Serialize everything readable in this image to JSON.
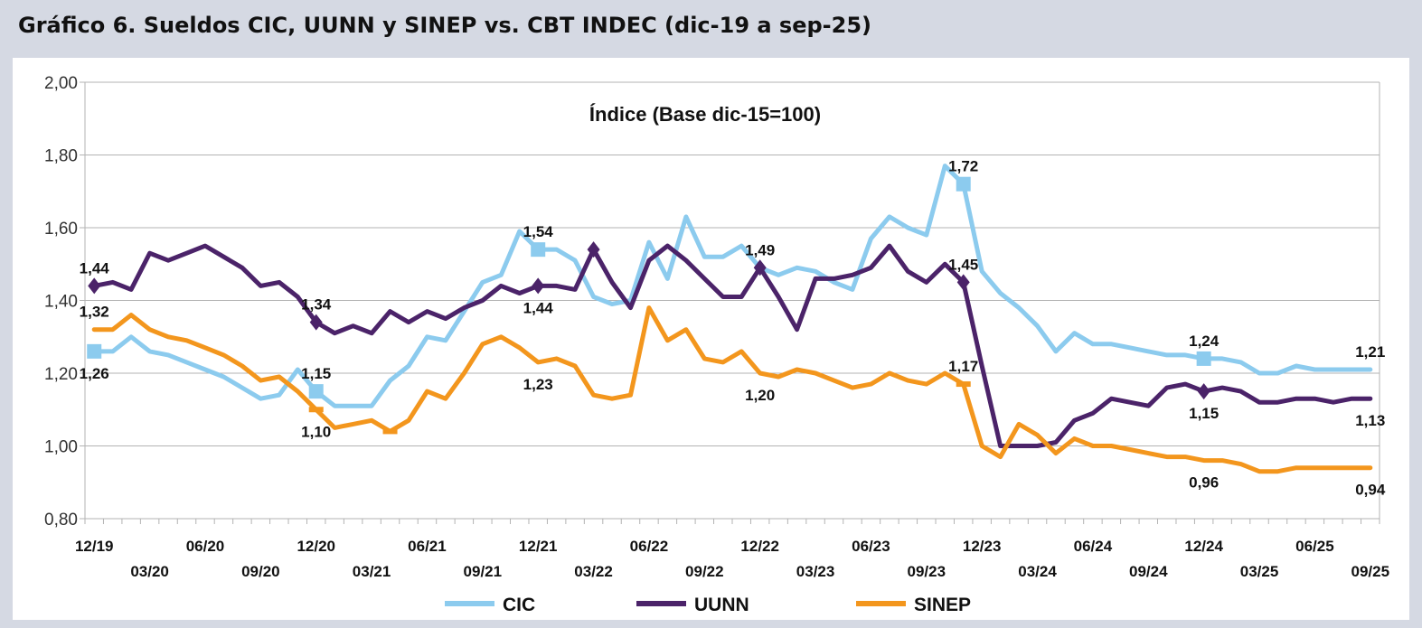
{
  "title": "Gráfico 6. Sueldos CIC, UUNN y SINEP vs. CBT INDEC (dic-19 a sep-25)",
  "chart_data": {
    "type": "line",
    "subtitle": "Índice (Base dic-15=100)",
    "ylim": [
      0.8,
      2.0
    ],
    "yticks": [
      "0,80",
      "1,00",
      "1,20",
      "1,40",
      "1,60",
      "1,80",
      "2,00"
    ],
    "ytick_values": [
      0.8,
      1.0,
      1.2,
      1.4,
      1.6,
      1.8,
      2.0
    ],
    "x_months": 70,
    "xticks": [
      {
        "label": "12/19",
        "m": 0,
        "row": 1
      },
      {
        "label": "03/20",
        "m": 3,
        "row": 2
      },
      {
        "label": "06/20",
        "m": 6,
        "row": 1
      },
      {
        "label": "09/20",
        "m": 9,
        "row": 2
      },
      {
        "label": "12/20",
        "m": 12,
        "row": 1
      },
      {
        "label": "03/21",
        "m": 15,
        "row": 2
      },
      {
        "label": "06/21",
        "m": 18,
        "row": 1
      },
      {
        "label": "09/21",
        "m": 21,
        "row": 2
      },
      {
        "label": "12/21",
        "m": 24,
        "row": 1
      },
      {
        "label": "03/22",
        "m": 27,
        "row": 2
      },
      {
        "label": "06/22",
        "m": 30,
        "row": 1
      },
      {
        "label": "09/22",
        "m": 33,
        "row": 2
      },
      {
        "label": "12/22",
        "m": 36,
        "row": 1
      },
      {
        "label": "03/23",
        "m": 39,
        "row": 2
      },
      {
        "label": "06/23",
        "m": 42,
        "row": 1
      },
      {
        "label": "09/23",
        "m": 45,
        "row": 2
      },
      {
        "label": "12/23",
        "m": 48,
        "row": 1
      },
      {
        "label": "03/24",
        "m": 51,
        "row": 2
      },
      {
        "label": "06/24",
        "m": 54,
        "row": 1
      },
      {
        "label": "09/24",
        "m": 57,
        "row": 2
      },
      {
        "label": "12/24",
        "m": 60,
        "row": 1
      },
      {
        "label": "03/25",
        "m": 63,
        "row": 2
      },
      {
        "label": "06/25",
        "m": 66,
        "row": 1
      },
      {
        "label": "09/25",
        "m": 69,
        "row": 2
      }
    ],
    "grid": true,
    "legend_position": "bottom",
    "series": [
      {
        "name": "CIC",
        "color": "#8ccbee",
        "marker": "square",
        "values": [
          1.26,
          1.26,
          1.3,
          1.26,
          1.25,
          1.23,
          1.21,
          1.19,
          1.16,
          1.13,
          1.14,
          1.21,
          1.15,
          1.11,
          1.11,
          1.11,
          1.18,
          1.22,
          1.3,
          1.29,
          1.37,
          1.45,
          1.47,
          1.59,
          1.54,
          1.54,
          1.51,
          1.41,
          1.39,
          1.4,
          1.56,
          1.46,
          1.63,
          1.52,
          1.52,
          1.55,
          1.49,
          1.47,
          1.49,
          1.48,
          1.45,
          1.43,
          1.57,
          1.63,
          1.6,
          1.58,
          1.77,
          1.72,
          1.48,
          1.42,
          1.38,
          1.33,
          1.26,
          1.31,
          1.28,
          1.28,
          1.27,
          1.26,
          1.25,
          1.25,
          1.24,
          1.24,
          1.23,
          1.2,
          1.2,
          1.22,
          1.21,
          1.21,
          1.21,
          1.21
        ],
        "labels": [
          {
            "m": 0,
            "text": "1,26",
            "pos": "below"
          },
          {
            "m": 12,
            "text": "1,15",
            "pos": "above"
          },
          {
            "m": 24,
            "text": "1,54",
            "pos": "above"
          },
          {
            "m": 47,
            "text": "1,72",
            "pos": "above"
          },
          {
            "m": 60,
            "text": "1,24",
            "pos": "above"
          },
          {
            "m": 69,
            "text": "1,21",
            "pos": "above"
          }
        ],
        "markers": [
          0,
          12,
          24,
          47,
          60
        ]
      },
      {
        "name": "UUNN",
        "color": "#4b2369",
        "marker": "diamond",
        "values": [
          1.44,
          1.45,
          1.43,
          1.53,
          1.51,
          1.53,
          1.55,
          1.52,
          1.49,
          1.44,
          1.45,
          1.41,
          1.34,
          1.31,
          1.33,
          1.31,
          1.37,
          1.34,
          1.37,
          1.35,
          1.38,
          1.4,
          1.44,
          1.42,
          1.44,
          1.44,
          1.43,
          1.54,
          1.45,
          1.38,
          1.51,
          1.55,
          1.51,
          1.46,
          1.41,
          1.41,
          1.49,
          1.41,
          1.32,
          1.46,
          1.46,
          1.47,
          1.49,
          1.55,
          1.48,
          1.45,
          1.5,
          1.45,
          1.22,
          1.0,
          1.0,
          1.0,
          1.01,
          1.07,
          1.09,
          1.13,
          1.12,
          1.11,
          1.16,
          1.17,
          1.15,
          1.16,
          1.15,
          1.12,
          1.12,
          1.13,
          1.13,
          1.12,
          1.13,
          1.13
        ],
        "labels": [
          {
            "m": 0,
            "text": "1,44",
            "pos": "above"
          },
          {
            "m": 12,
            "text": "1,34",
            "pos": "above"
          },
          {
            "m": 24,
            "text": "1,44",
            "pos": "below"
          },
          {
            "m": 36,
            "text": "1,49",
            "pos": "above"
          },
          {
            "m": 47,
            "text": "1,45",
            "pos": "above"
          },
          {
            "m": 60,
            "text": "1,15",
            "pos": "below"
          },
          {
            "m": 69,
            "text": "1,13",
            "pos": "below"
          }
        ],
        "markers": [
          0,
          12,
          24,
          27,
          36,
          47,
          60
        ]
      },
      {
        "name": "SINEP",
        "color": "#f3961d",
        "marker": "bar",
        "values": [
          1.32,
          1.32,
          1.36,
          1.32,
          1.3,
          1.29,
          1.27,
          1.25,
          1.22,
          1.18,
          1.19,
          1.15,
          1.1,
          1.05,
          1.06,
          1.07,
          1.04,
          1.07,
          1.15,
          1.13,
          1.2,
          1.28,
          1.3,
          1.27,
          1.23,
          1.24,
          1.22,
          1.14,
          1.13,
          1.14,
          1.38,
          1.29,
          1.32,
          1.24,
          1.23,
          1.26,
          1.2,
          1.19,
          1.21,
          1.2,
          1.18,
          1.16,
          1.17,
          1.2,
          1.18,
          1.17,
          1.2,
          1.17,
          1.0,
          0.97,
          1.06,
          1.03,
          0.98,
          1.02,
          1.0,
          1.0,
          0.99,
          0.98,
          0.97,
          0.97,
          0.96,
          0.96,
          0.95,
          0.93,
          0.93,
          0.94,
          0.94,
          0.94,
          0.94,
          0.94
        ],
        "labels": [
          {
            "m": 0,
            "text": "1,32",
            "pos": "above"
          },
          {
            "m": 12,
            "text": "1,10",
            "pos": "below"
          },
          {
            "m": 24,
            "text": "1,23",
            "pos": "below"
          },
          {
            "m": 36,
            "text": "1,20",
            "pos": "below"
          },
          {
            "m": 47,
            "text": "1,17",
            "pos": "above"
          },
          {
            "m": 60,
            "text": "0,96",
            "pos": "below"
          },
          {
            "m": 69,
            "text": "0,94",
            "pos": "below"
          }
        ],
        "markers": [
          12,
          16,
          47
        ]
      }
    ]
  }
}
